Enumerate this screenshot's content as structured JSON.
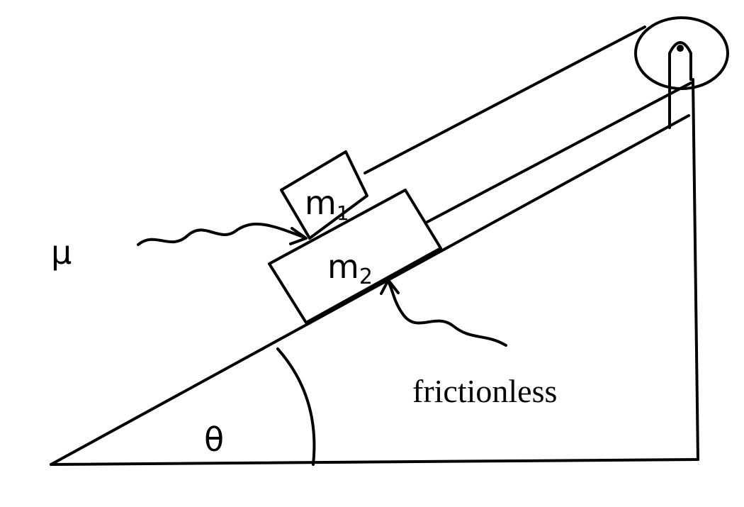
{
  "labels": {
    "block_top": "m",
    "block_top_subscript": "1",
    "block_bottom": "m",
    "block_bottom_subscript": "2",
    "coefficient": "μ",
    "surface_note": "frictionless",
    "angle": "θ"
  },
  "colors": {
    "ink": "#000000",
    "paper": "#ffffff"
  }
}
